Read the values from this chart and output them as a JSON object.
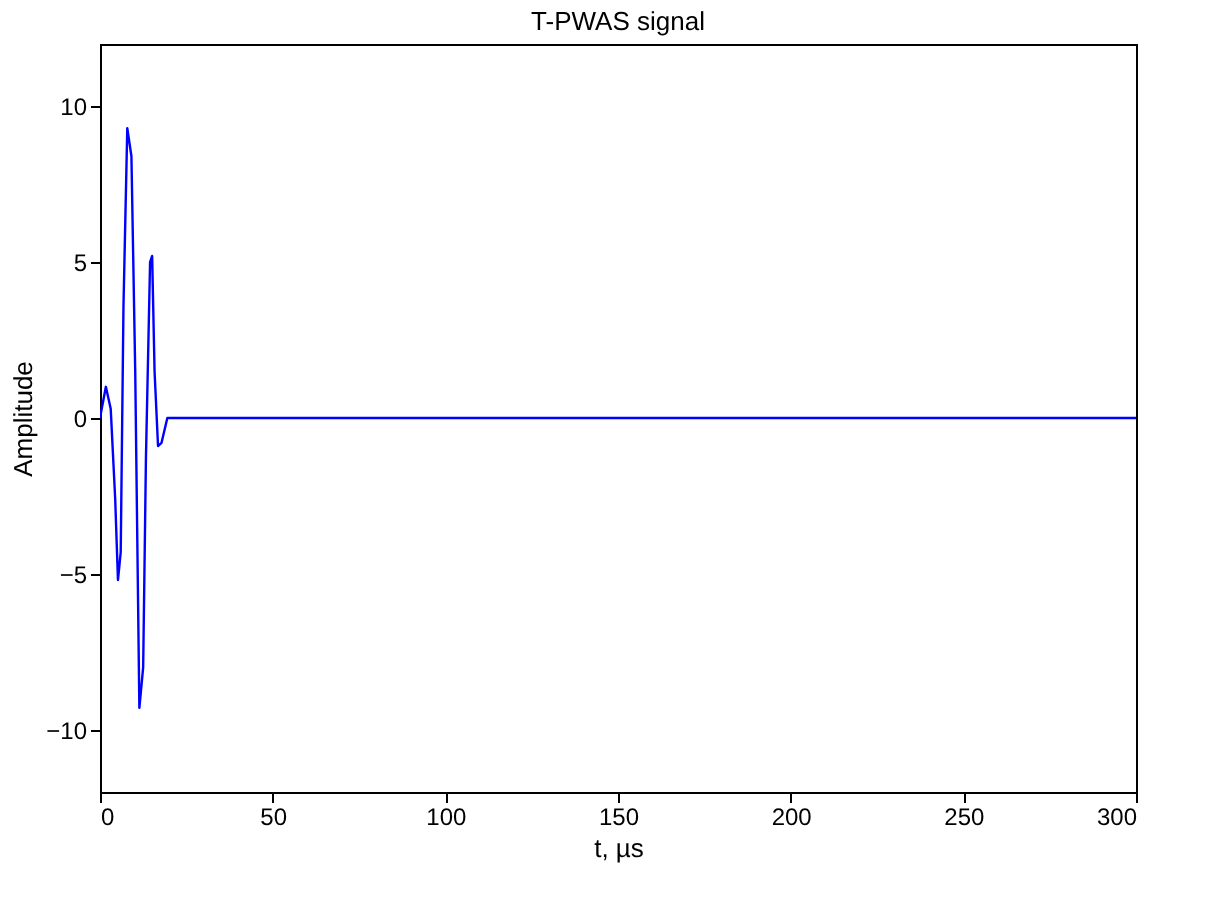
{
  "chart_data": {
    "type": "line",
    "title": "T-PWAS signal",
    "xlabel": "t, µs",
    "ylabel": "Amplitude",
    "x": [
      0,
      1.7,
      3.1,
      4.4,
      5.2,
      6.0,
      6.8,
      7.9,
      9.1,
      10.2,
      11.4,
      12.5,
      13.3,
      14.5,
      15.1,
      15.8,
      16.8,
      17.8,
      19.5,
      300
    ],
    "series": [
      {
        "color": "#0000ff",
        "values": [
          0,
          1.0,
          0.3,
          -2.6,
          -5.2,
          -4.3,
          3.6,
          9.3,
          8.4,
          1.5,
          -9.3,
          -8.0,
          -1.3,
          5.0,
          5.2,
          1.5,
          -0.9,
          -0.8,
          0,
          0
        ]
      }
    ],
    "xlim": [
      0,
      300
    ],
    "xticks": [
      0,
      50,
      100,
      150,
      200,
      250,
      300
    ],
    "ylim": [
      -12,
      12
    ],
    "yticks": [
      -10,
      -5,
      0,
      5,
      10
    ],
    "grid": false,
    "legend": false
  }
}
